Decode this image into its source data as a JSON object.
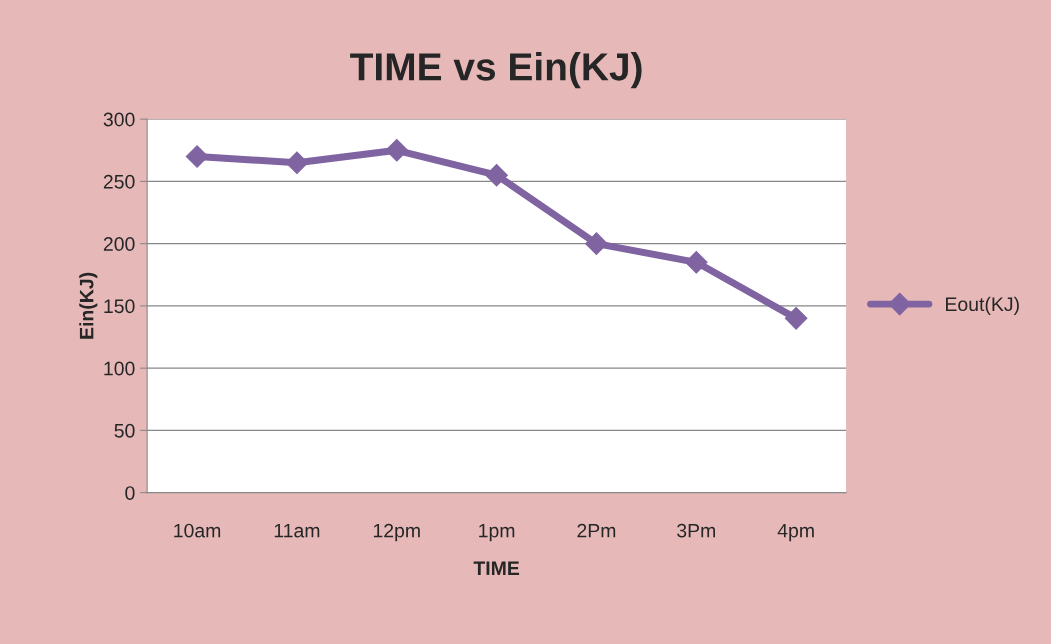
{
  "chart_data": {
    "type": "line",
    "title": "TIME vs Ein(KJ)",
    "xlabel": "TIME",
    "ylabel": "Ein(KJ)",
    "categories": [
      "10am",
      "11am",
      "12pm",
      "1pm",
      "2Pm",
      "3Pm",
      "4pm"
    ],
    "series": [
      {
        "name": "Eout(KJ)",
        "color": "#8064a2",
        "values": [
          270,
          265,
          275,
          255,
          200,
          185,
          140
        ]
      }
    ],
    "ylim": [
      0,
      300
    ],
    "yticks": [
      0,
      50,
      100,
      150,
      200,
      250,
      300
    ],
    "grid": "y",
    "legend": "right",
    "marker": "diamond",
    "line_style": "solid"
  }
}
